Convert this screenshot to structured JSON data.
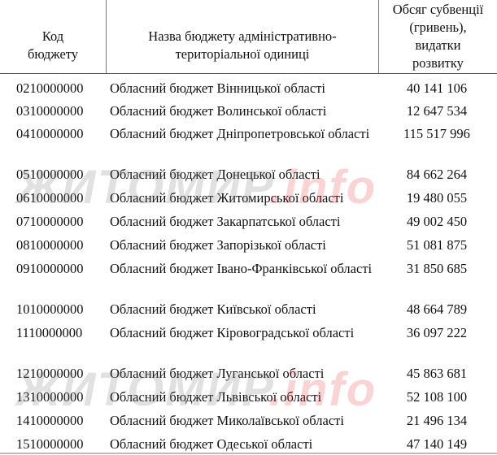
{
  "table": {
    "headers": [
      "Код бюджету",
      "Назва бюджету адміністративно-територіальної одиниці",
      "Обсяг субвенції (гривень), видатки розвитку"
    ],
    "header_lines": [
      [
        "Код",
        "бюджету"
      ],
      [
        "Назва бюджету адміністративно-",
        "територіальної одиниці"
      ],
      [
        "Обсяг субвенції",
        "(гривень),",
        "видатки",
        "розвитку"
      ]
    ],
    "rows": [
      {
        "code": "0210000000",
        "name": "Обласний бюджет Вінницької області",
        "amount": "40 141 106"
      },
      {
        "code": "0310000000",
        "name": "Обласний бюджет Волинської області",
        "amount": "12 647 534"
      },
      {
        "code": "0410000000",
        "name": "Обласний бюджет Дніпропетровської області",
        "amount": "115 517 996"
      },
      {
        "code": "0510000000",
        "name": "Обласний бюджет Донецької області",
        "amount": "84 662 264"
      },
      {
        "code": "0610000000",
        "name": "Обласний бюджет Житомирської області",
        "amount": "19 480 055"
      },
      {
        "code": "0710000000",
        "name": "Обласний бюджет Закарпатської області",
        "amount": "49 002 450"
      },
      {
        "code": "0810000000",
        "name": "Обласний бюджет Запорізької області",
        "amount": "51 081 875"
      },
      {
        "code": "0910000000",
        "name": "Обласний бюджет Івано-Франківської області",
        "amount": "31 850 685"
      },
      {
        "code": "1010000000",
        "name": "Обласний бюджет Київської області",
        "amount": "48 664 789"
      },
      {
        "code": "1110000000",
        "name": "Обласний бюджет Кіровоградської області",
        "amount": "36 097 222"
      },
      {
        "code": "1210000000",
        "name": "Обласний бюджет Луганської області",
        "amount": "45 863 681"
      },
      {
        "code": "1310000000",
        "name": "Обласний бюджет Львівської області",
        "amount": "52 108 100"
      },
      {
        "code": "1410000000",
        "name": "Обласний бюджет Миколаївської області",
        "amount": "21 496 134"
      },
      {
        "code": "1510000000",
        "name": "Обласний бюджет Одеської області",
        "amount": "47 140 149"
      }
    ]
  },
  "watermark": {
    "main": "ЖИТОМИР",
    "suffix": ".info"
  }
}
